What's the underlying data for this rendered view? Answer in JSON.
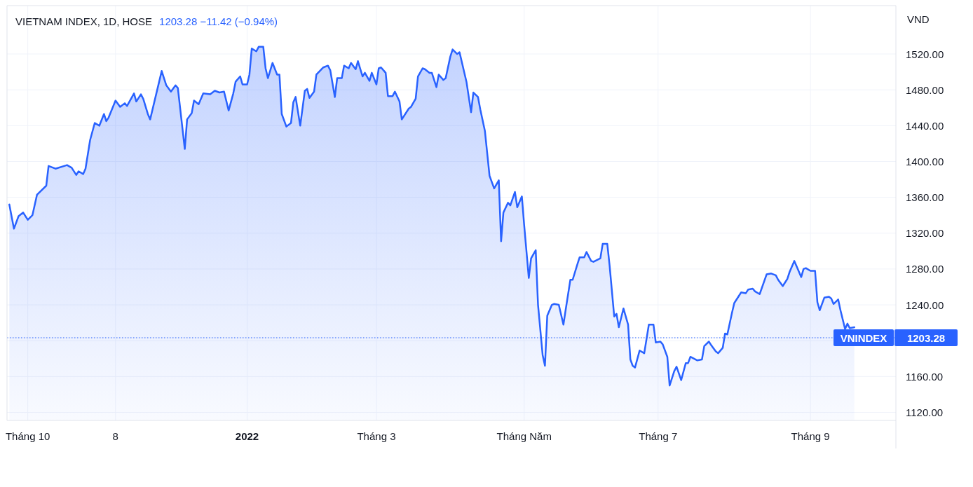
{
  "chart_data": {
    "type": "area",
    "title": "VIETNAM INDEX, 1D, HOSE",
    "subtitle": "1203.28  −11.42 (−0.94%)",
    "ylabel": "VND",
    "x": [
      "2021-09-23",
      "2021-09-25",
      "2021-09-27",
      "2021-09-29",
      "2021-10-01",
      "2021-10-03",
      "2021-10-05",
      "2021-10-09",
      "2021-10-10",
      "2021-10-13",
      "2021-10-18",
      "2021-10-20",
      "2021-10-22",
      "2021-10-23",
      "2021-10-25",
      "2021-10-26",
      "2021-10-28",
      "2021-10-30",
      "2021-11-01",
      "2021-11-03",
      "2021-11-04",
      "2021-11-05",
      "2021-11-08",
      "2021-11-10",
      "2021-11-12",
      "2021-11-13",
      "2021-11-16",
      "2021-11-17",
      "2021-11-19",
      "2021-11-20",
      "2021-11-22",
      "2021-11-23",
      "2021-11-28",
      "2021-11-30",
      "2021-12-02",
      "2021-12-04",
      "2021-12-05",
      "2021-12-08",
      "2021-12-09",
      "2021-12-11",
      "2021-12-12",
      "2021-12-14",
      "2021-12-16",
      "2021-12-19",
      "2021-12-21",
      "2021-12-23",
      "2021-12-25",
      "2021-12-27",
      "2021-12-29",
      "2021-12-30",
      "2022-01-01",
      "2022-01-02",
      "2022-01-04",
      "2022-01-05",
      "2022-01-06",
      "2022-01-08",
      "2022-01-09",
      "2022-01-11",
      "2022-01-12",
      "2022-01-13",
      "2022-01-15",
      "2022-01-17",
      "2022-01-18",
      "2022-01-19",
      "2022-01-21",
      "2022-01-23",
      "2022-01-24",
      "2022-01-25",
      "2022-01-27",
      "2022-01-29",
      "2022-01-30",
      "2022-01-31",
      "2022-02-02",
      "2022-02-03",
      "2022-02-06",
      "2022-02-08",
      "2022-02-09",
      "2022-02-11",
      "2022-02-12",
      "2022-02-14",
      "2022-02-15",
      "2022-02-17",
      "2022-02-18",
      "2022-02-20",
      "2022-02-21",
      "2022-02-23",
      "2022-02-24",
      "2022-02-26",
      "2022-02-27",
      "2022-03-01",
      "2022-03-02",
      "2022-03-03",
      "2022-03-05",
      "2022-03-06",
      "2022-03-08",
      "2022-03-09",
      "2022-03-11",
      "2022-03-12",
      "2022-03-15",
      "2022-03-16",
      "2022-03-18",
      "2022-03-19",
      "2022-03-21",
      "2022-03-22",
      "2022-03-24",
      "2022-03-25",
      "2022-03-27",
      "2022-03-28",
      "2022-03-30",
      "2022-03-31",
      "2022-04-02",
      "2022-04-03",
      "2022-04-05",
      "2022-04-06",
      "2022-04-09",
      "2022-04-11",
      "2022-04-12",
      "2022-04-14",
      "2022-04-15",
      "2022-04-17",
      "2022-04-19",
      "2022-04-21",
      "2022-04-23",
      "2022-04-24",
      "2022-04-25",
      "2022-04-27",
      "2022-04-28",
      "2022-04-30",
      "2022-05-01",
      "2022-05-03",
      "2022-05-04",
      "2022-05-06",
      "2022-05-07",
      "2022-05-09",
      "2022-05-10",
      "2022-05-12",
      "2022-05-13",
      "2022-05-14",
      "2022-05-16",
      "2022-05-17",
      "2022-05-19",
      "2022-05-21",
      "2022-05-22",
      "2022-05-24",
      "2022-05-25",
      "2022-05-27",
      "2022-05-28",
      "2022-05-30",
      "2022-05-31",
      "2022-06-02",
      "2022-06-03",
      "2022-06-06",
      "2022-06-07",
      "2022-06-09",
      "2022-06-10",
      "2022-06-12",
      "2022-06-13",
      "2022-06-14",
      "2022-06-16",
      "2022-06-18",
      "2022-06-19",
      "2022-06-20",
      "2022-06-21",
      "2022-06-23",
      "2022-06-25",
      "2022-06-27",
      "2022-06-29",
      "2022-06-30",
      "2022-07-02",
      "2022-07-03",
      "2022-07-05",
      "2022-07-06",
      "2022-07-08",
      "2022-07-09",
      "2022-07-11",
      "2022-07-13",
      "2022-07-14",
      "2022-07-15",
      "2022-07-18",
      "2022-07-20",
      "2022-07-21",
      "2022-07-23",
      "2022-07-24",
      "2022-07-26",
      "2022-07-27",
      "2022-07-29",
      "2022-07-30",
      "2022-07-31",
      "2022-08-02",
      "2022-08-03",
      "2022-08-05",
      "2022-08-06",
      "2022-08-08",
      "2022-08-09",
      "2022-08-11",
      "2022-08-12",
      "2022-08-14",
      "2022-08-17",
      "2022-08-19",
      "2022-08-21",
      "2022-08-22",
      "2022-08-24",
      "2022-08-26",
      "2022-08-27",
      "2022-08-29",
      "2022-08-30",
      "2022-09-01",
      "2022-09-02",
      "2022-09-03",
      "2022-09-05",
      "2022-09-07",
      "2022-09-08",
      "2022-09-09",
      "2022-09-11",
      "2022-09-13",
      "2022-09-14",
      "2022-09-15",
      "2022-09-17",
      "2022-09-18",
      "2022-09-20",
      "2022-09-21",
      "2022-09-22",
      "2022-09-24"
    ],
    "series": [
      {
        "color": "#2962ff",
        "values": [
          1352,
          1325,
          1339,
          1343,
          1335,
          1340,
          1363,
          1373,
          1395,
          1392,
          1396,
          1393,
          1385,
          1389,
          1386,
          1392,
          1424,
          1443,
          1440,
          1453,
          1445,
          1449,
          1468,
          1461,
          1465,
          1462,
          1476,
          1467,
          1475,
          1470,
          1453,
          1447,
          1501,
          1485,
          1478,
          1485,
          1482,
          1414,
          1447,
          1454,
          1468,
          1464,
          1476,
          1475,
          1479,
          1477,
          1478,
          1457,
          1476,
          1489,
          1495,
          1486,
          1486,
          1497,
          1526,
          1523,
          1528,
          1528,
          1504,
          1493,
          1510,
          1497,
          1497,
          1453,
          1439,
          1443,
          1466,
          1472,
          1440,
          1479,
          1481,
          1471,
          1478,
          1497,
          1505,
          1507,
          1502,
          1472,
          1493,
          1493,
          1507,
          1504,
          1510,
          1503,
          1512,
          1495,
          1499,
          1490,
          1499,
          1486,
          1504,
          1505,
          1499,
          1473,
          1473,
          1478,
          1467,
          1447,
          1459,
          1461,
          1470,
          1495,
          1504,
          1503,
          1499,
          1499,
          1483,
          1497,
          1491,
          1493,
          1517,
          1525,
          1520,
          1522,
          1489,
          1455,
          1477,
          1472,
          1458,
          1434,
          1384,
          1370,
          1379,
          1311,
          1343,
          1354,
          1351,
          1366,
          1349,
          1361,
          1329,
          1270,
          1292,
          1301,
          1240,
          1184,
          1172,
          1228,
          1240,
          1241,
          1240,
          1218,
          1235,
          1268,
          1268,
          1285,
          1293,
          1293,
          1299,
          1289,
          1288,
          1292,
          1308,
          1308,
          1284,
          1227,
          1230,
          1215,
          1236,
          1218,
          1179,
          1172,
          1170,
          1189,
          1186,
          1218,
          1218,
          1198,
          1199,
          1196,
          1182,
          1150,
          1166,
          1171,
          1156,
          1175,
          1175,
          1182,
          1178,
          1179,
          1194,
          1199,
          1195,
          1188,
          1186,
          1192,
          1208,
          1207,
          1231,
          1242,
          1250,
          1254,
          1253,
          1257,
          1258,
          1255,
          1252,
          1274,
          1275,
          1273,
          1268,
          1261,
          1269,
          1277,
          1289,
          1283,
          1271,
          1280,
          1281,
          1278,
          1278,
          1243,
          1234,
          1248,
          1249,
          1247,
          1241,
          1246,
          1234,
          1213,
          1219,
          1214,
          1215
        ]
      }
    ],
    "xlim": [
      "2021-09-22",
      "2022-10-12"
    ],
    "xticks": [
      {
        "value": "2021-10-01",
        "label": "Tháng 10"
      },
      {
        "value": "2021-11-08",
        "label": "8"
      },
      {
        "value": "2022-01-04",
        "label": "2022"
      },
      {
        "value": "2022-03-01",
        "label": "Tháng 3"
      },
      {
        "value": "2022-05-04",
        "label": "Tháng Năm"
      },
      {
        "value": "2022-07-01",
        "label": "Tháng 7"
      },
      {
        "value": "2022-09-05",
        "label": "Tháng 9"
      }
    ],
    "ylim": [
      1111,
      1574
    ],
    "yticks": [
      {
        "value": 1120,
        "label": "1120.00"
      },
      {
        "value": 1160,
        "label": "1160.00"
      },
      {
        "value": 1200,
        "label": null
      },
      {
        "value": 1203.28,
        "label": "1203.28"
      },
      {
        "value": 1240,
        "label": "1240.00"
      },
      {
        "value": 1280,
        "label": "1280.00"
      },
      {
        "value": 1320,
        "label": "1320.00"
      },
      {
        "value": 1360,
        "label": "1360.00"
      },
      {
        "value": 1400,
        "label": "1400.00"
      },
      {
        "value": 1440,
        "label": "1440.00"
      },
      {
        "value": 1480,
        "label": "1480.00"
      },
      {
        "value": 1520,
        "label": "1520.00"
      }
    ],
    "ref_lines": [
      {
        "axis": "y",
        "value": 1203.28,
        "label": "VNINDEX",
        "color": "#2962ff",
        "line_style": "dotted"
      }
    ],
    "grid": true
  }
}
